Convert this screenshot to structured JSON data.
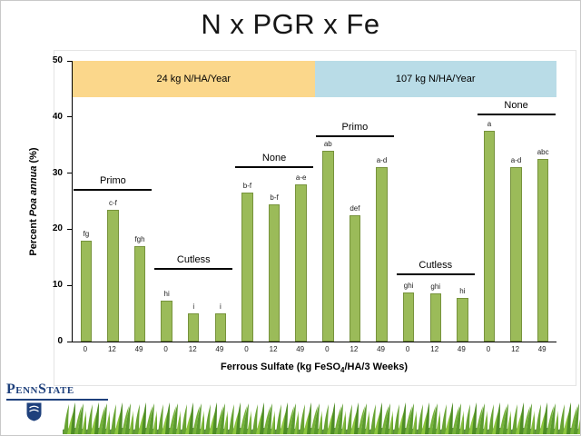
{
  "slide": {
    "title": "N x PGR x Fe"
  },
  "footer": {
    "logo_text": "PennState"
  },
  "chart_data": {
    "type": "bar",
    "title": "N x PGR x Fe",
    "ylabel": {
      "prefix": "Percent ",
      "italic": "Poa annua",
      "suffix": " (%)"
    },
    "xlabel": {
      "prefix": "Ferrous Sulfate (kg FeSO",
      "sub": "4",
      "suffix": "/HA/3 Weeks)"
    },
    "ylim": [
      0,
      50
    ],
    "yticks": [
      0,
      10,
      20,
      30,
      40,
      50
    ],
    "grid": false,
    "legend": false,
    "bar_color": "#9BBB59",
    "bar_border_color": "#77933C",
    "band_height_units": 6.5,
    "bands": [
      {
        "label": "24 kg N/HA/Year",
        "color": "#FBD78B"
      },
      {
        "label": "107 kg N/HA/Year",
        "color": "#B9DCE7"
      }
    ],
    "groups": [
      {
        "band": "24 kg N/HA/Year",
        "pgr": "Primo",
        "bracket_value": 27,
        "bars": [
          {
            "x": "0",
            "value": 18,
            "letter": "fg"
          },
          {
            "x": "12",
            "value": 23.5,
            "letter": "c-f"
          },
          {
            "x": "49",
            "value": 17,
            "letter": "fgh"
          }
        ]
      },
      {
        "band": "24 kg N/HA/Year",
        "pgr": "Cutless",
        "bracket_value": 13,
        "bars": [
          {
            "x": "0",
            "value": 7.3,
            "letter": "hi"
          },
          {
            "x": "12",
            "value": 5,
            "letter": "i"
          },
          {
            "x": "49",
            "value": 5,
            "letter": "i"
          }
        ]
      },
      {
        "band": "24 kg N/HA/Year",
        "pgr": "None",
        "bracket_value": 31,
        "bars": [
          {
            "x": "0",
            "value": 26.5,
            "letter": "b-f"
          },
          {
            "x": "12",
            "value": 24.5,
            "letter": "b-f"
          },
          {
            "x": "49",
            "value": 28,
            "letter": "a-e"
          }
        ]
      },
      {
        "band": "107 kg N/HA/Year",
        "pgr": "Primo",
        "bracket_value": 36.5,
        "bars": [
          {
            "x": "0",
            "value": 34,
            "letter": "ab"
          },
          {
            "x": "12",
            "value": 22.5,
            "letter": "def"
          },
          {
            "x": "49",
            "value": 31,
            "letter": "a-d"
          }
        ]
      },
      {
        "band": "107 kg N/HA/Year",
        "pgr": "Cutless",
        "bracket_value": 12,
        "bars": [
          {
            "x": "0",
            "value": 8.7,
            "letter": "ghi"
          },
          {
            "x": "12",
            "value": 8.5,
            "letter": "ghi"
          },
          {
            "x": "49",
            "value": 7.7,
            "letter": "hi"
          }
        ]
      },
      {
        "band": "107 kg N/HA/Year",
        "pgr": "None",
        "bracket_value": 40.5,
        "bars": [
          {
            "x": "0",
            "value": 37.5,
            "letter": "a"
          },
          {
            "x": "12",
            "value": 31,
            "letter": "a-d"
          },
          {
            "x": "49",
            "value": 32.5,
            "letter": "abc"
          }
        ]
      }
    ]
  }
}
